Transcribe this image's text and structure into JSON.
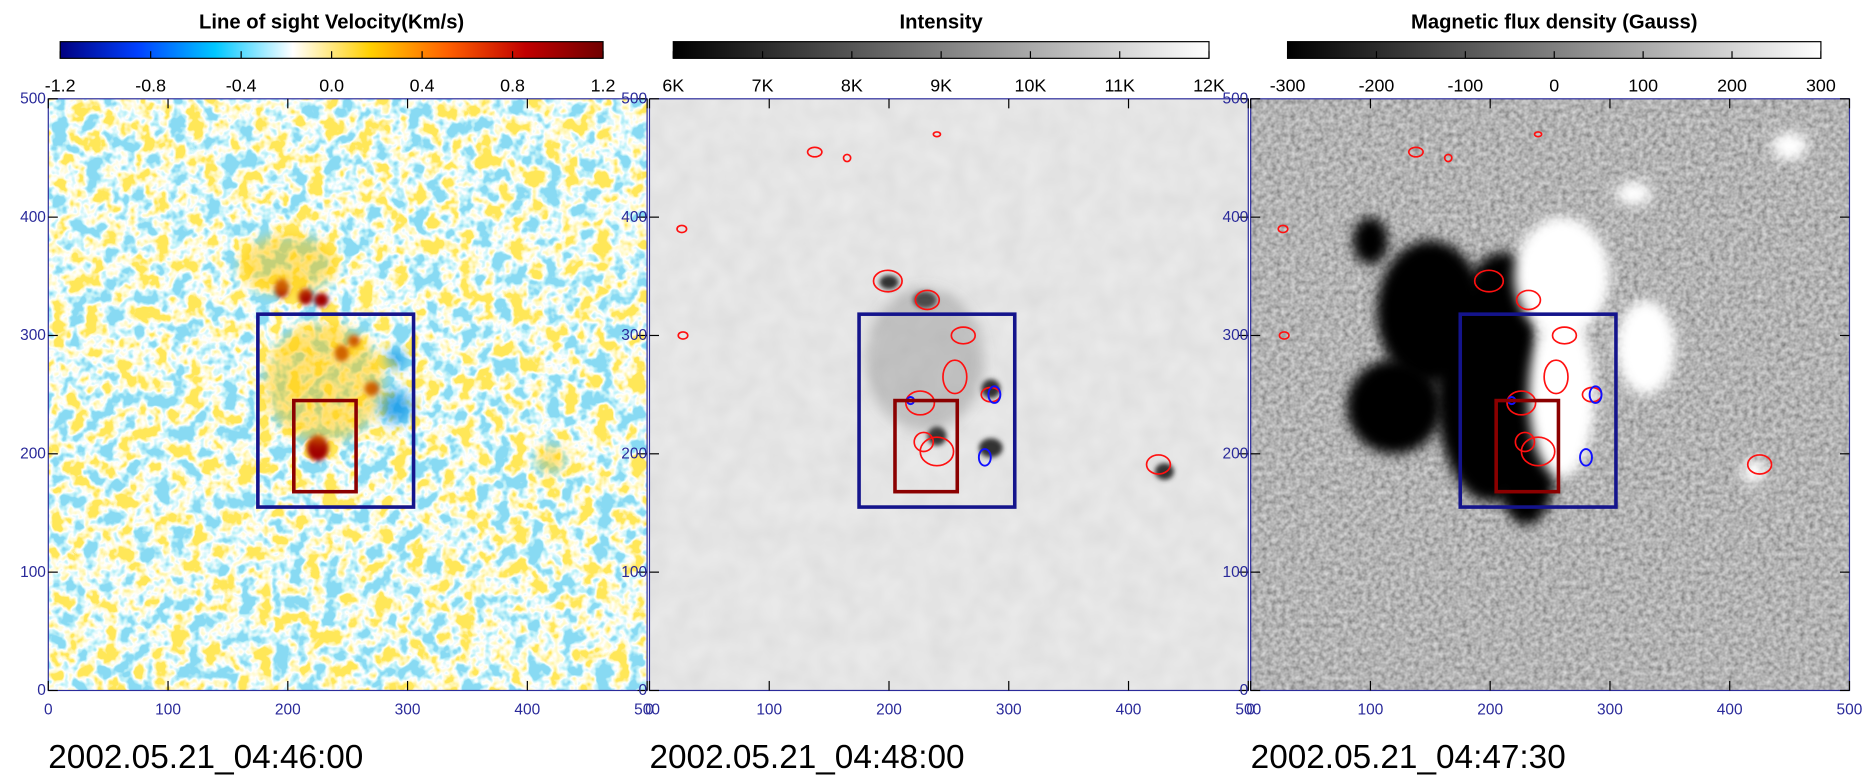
{
  "chart_data": [
    {
      "type": "heatmap",
      "title": "Line of sight Velocity(Km/s)",
      "colormap": [
        "#000080",
        "#0040ff",
        "#00c8ff",
        "#ffffff",
        "#ffd000",
        "#ff6000",
        "#c00000",
        "#700000"
      ],
      "colorbar_lim": [
        -1.2,
        1.2
      ],
      "colorbar_ticks": [
        -1.2,
        -0.8,
        -0.4,
        {
          "value": 0,
          "label": "0.0"
        },
        0.4,
        0.8,
        1.2
      ],
      "xlim": [
        0,
        500
      ],
      "ylim": [
        0,
        500
      ],
      "xticks": [
        0,
        100,
        200,
        300,
        400,
        500
      ],
      "yticks": [
        0,
        100,
        200,
        300,
        400,
        500
      ],
      "boxes": [
        {
          "x": [
            175,
            305
          ],
          "y": [
            155,
            318
          ],
          "color": "#14148c"
        },
        {
          "x": [
            205,
            257
          ],
          "y": [
            168,
            245
          ],
          "color": "#8b0000"
        }
      ],
      "timestamp": "2002.05.21_04:46:00"
    },
    {
      "type": "heatmap",
      "title": "Intensity",
      "colormap": [
        "#000000",
        "#ffffff"
      ],
      "colorbar_lim": [
        6000,
        12000
      ],
      "colorbar_ticks": [
        {
          "value": 6000,
          "label": "6K"
        },
        {
          "value": 7000,
          "label": "7K"
        },
        {
          "value": 8000,
          "label": "8K"
        },
        {
          "value": 9000,
          "label": "9K"
        },
        {
          "value": 10000,
          "label": "10K"
        },
        {
          "value": 11000,
          "label": "11K"
        },
        {
          "value": 12000,
          "label": "12K"
        }
      ],
      "xlim": [
        0,
        500
      ],
      "ylim": [
        0,
        500
      ],
      "xticks": [
        0,
        100,
        200,
        300,
        400,
        500
      ],
      "yticks": [
        0,
        100,
        200,
        300,
        400,
        500
      ],
      "boxes": [
        {
          "x": [
            175,
            305
          ],
          "y": [
            155,
            318
          ],
          "color": "#14148c"
        },
        {
          "x": [
            205,
            257
          ],
          "y": [
            168,
            245
          ],
          "color": "#8b0000"
        }
      ],
      "timestamp": "2002.05.21_04:48:00"
    },
    {
      "type": "heatmap",
      "title": "Magnetic flux density (Gauss)",
      "colormap": [
        "#000000",
        "#ffffff"
      ],
      "colorbar_lim": [
        -300,
        300
      ],
      "colorbar_ticks": [
        -300,
        -200,
        -100,
        0,
        100,
        200,
        300
      ],
      "xlim": [
        0,
        500
      ],
      "ylim": [
        0,
        500
      ],
      "xticks": [
        0,
        100,
        200,
        300,
        400,
        500
      ],
      "yticks": [
        0,
        100,
        200,
        300,
        400,
        500
      ],
      "boxes": [
        {
          "x": [
            175,
            305
          ],
          "y": [
            155,
            318
          ],
          "color": "#14148c"
        },
        {
          "x": [
            205,
            257
          ],
          "y": [
            168,
            245
          ],
          "color": "#8b0000"
        }
      ],
      "timestamp": "2002.05.21_04:47:30"
    }
  ]
}
